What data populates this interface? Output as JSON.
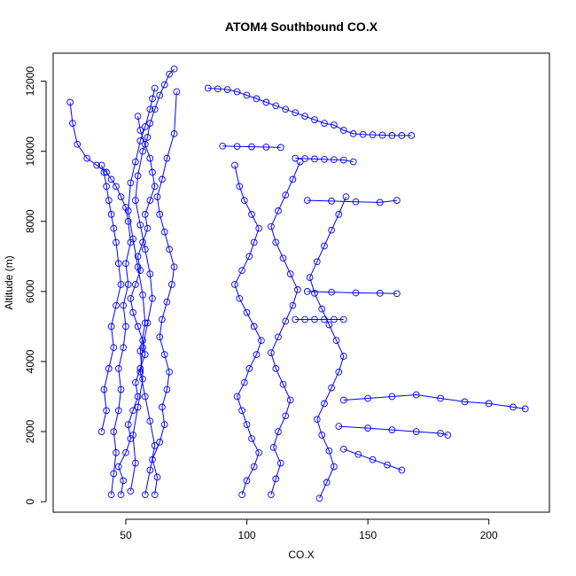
{
  "chart_data": {
    "type": "scatter",
    "title": "ATOM4 Southbound CO.X",
    "xlabel": "CO.X",
    "ylabel": "Altitude (m)",
    "xlim": [
      20,
      225
    ],
    "ylim": [
      -300,
      12800
    ],
    "xticks": [
      50,
      100,
      150,
      200
    ],
    "yticks": [
      0,
      2000,
      4000,
      6000,
      8000,
      10000,
      12000
    ],
    "grid": false,
    "legend": "none",
    "color": "#0000ff",
    "marker": "open-circle",
    "connected": true,
    "series": [
      {
        "x": [
          48,
          49,
          47,
          50,
          52,
          51,
          53,
          55,
          54,
          56,
          58,
          57,
          55,
          53,
          52,
          54,
          56,
          55,
          57,
          59,
          58,
          60,
          62,
          61,
          60,
          58,
          56,
          55
        ],
        "y": [
          200,
          600,
          1000,
          1400,
          1800,
          2200,
          2600,
          3000,
          3400,
          3800,
          4200,
          4600,
          5000,
          5400,
          5800,
          6200,
          6600,
          7000,
          7400,
          7800,
          8200,
          8600,
          9000,
          9400,
          9800,
          10200,
          10600,
          11000
        ]
      },
      {
        "x": [
          44,
          45,
          46,
          45,
          47,
          48,
          47,
          49,
          50,
          49,
          51,
          50,
          52,
          51,
          50,
          48,
          46,
          44,
          42,
          38,
          34,
          30,
          28,
          27
        ],
        "y": [
          200,
          800,
          1400,
          2000,
          2600,
          3200,
          3800,
          4400,
          5000,
          5600,
          6200,
          6800,
          7400,
          8000,
          8400,
          8700,
          9000,
          9200,
          9400,
          9600,
          9800,
          10200,
          10800,
          11400
        ]
      },
      {
        "x": [
          62,
          63,
          61,
          64,
          66,
          65,
          67,
          68,
          66,
          64,
          65,
          67,
          69,
          70,
          68,
          66,
          64,
          63,
          65,
          67,
          70,
          71
        ],
        "y": [
          200,
          700,
          1200,
          1700,
          2200,
          2700,
          3200,
          3700,
          4200,
          4700,
          5200,
          5700,
          6200,
          6700,
          7200,
          7700,
          8200,
          8700,
          9200,
          9800,
          10500,
          11700
        ]
      },
      {
        "x": [
          40,
          42,
          41,
          43,
          45,
          44,
          46,
          48,
          47,
          46,
          45,
          44,
          43,
          42,
          41,
          40
        ],
        "y": [
          2000,
          2600,
          3200,
          3800,
          4400,
          5000,
          5600,
          6200,
          6800,
          7400,
          7800,
          8200,
          8600,
          9000,
          9400,
          9600
        ]
      },
      {
        "x": [
          58,
          60,
          62,
          60,
          58,
          56,
          57,
          59,
          61,
          60,
          58,
          56,
          54,
          55,
          57,
          59,
          60,
          62,
          64,
          66,
          68,
          70
        ],
        "y": [
          200,
          900,
          1600,
          2300,
          3000,
          3700,
          4400,
          5100,
          5800,
          6500,
          7200,
          7900,
          8600,
          9300,
          10000,
          10400,
          10800,
          11200,
          11600,
          11900,
          12200,
          12350
        ]
      },
      {
        "x": [
          52,
          54,
          53,
          55,
          57,
          56,
          58,
          57,
          55,
          53,
          51,
          52,
          54,
          56,
          58,
          60,
          61,
          62
        ],
        "y": [
          300,
          1100,
          1900,
          2700,
          3500,
          4300,
          5100,
          5900,
          6700,
          7500,
          8300,
          9100,
          9700,
          10300,
          10700,
          11200,
          11500,
          11800
        ]
      },
      {
        "x": [
          84,
          88,
          92,
          96,
          100,
          104,
          108,
          112,
          116,
          120,
          124,
          128,
          132,
          136,
          140,
          144,
          148,
          152,
          156,
          160,
          164,
          168
        ],
        "y": [
          11800,
          11780,
          11760,
          11700,
          11600,
          11500,
          11400,
          11300,
          11200,
          11100,
          11000,
          10900,
          10800,
          10750,
          10600,
          10500,
          10480,
          10470,
          10460,
          10450,
          10450,
          10450
        ]
      },
      {
        "x": [
          98,
          100,
          103,
          105,
          102,
          100,
          98,
          96,
          99,
          101,
          104,
          106,
          103,
          100,
          97,
          95,
          98,
          101,
          103,
          105,
          102,
          99,
          97,
          95
        ],
        "y": [
          200,
          600,
          1000,
          1400,
          1800,
          2200,
          2600,
          3000,
          3400,
          3800,
          4200,
          4600,
          5000,
          5400,
          5800,
          6200,
          6600,
          7000,
          7400,
          7800,
          8200,
          8600,
          9000,
          9600
        ]
      },
      {
        "x": [
          110,
          112,
          114,
          111,
          113,
          116,
          118,
          115,
          112,
          110,
          113,
          116,
          119,
          121,
          118,
          115,
          112,
          110,
          113,
          116,
          119,
          122
        ],
        "y": [
          200,
          650,
          1100,
          1550,
          2000,
          2450,
          2900,
          3350,
          3800,
          4250,
          4700,
          5150,
          5600,
          6050,
          6500,
          6950,
          7400,
          7850,
          8300,
          8750,
          9200,
          9700
        ]
      },
      {
        "x": [
          130,
          133,
          136,
          134,
          131,
          129,
          132,
          135,
          138,
          140,
          137,
          134,
          131,
          128,
          126,
          129,
          132,
          135,
          138,
          141
        ],
        "y": [
          100,
          550,
          1000,
          1450,
          1900,
          2350,
          2800,
          3250,
          3700,
          4150,
          4600,
          5050,
          5500,
          5950,
          6400,
          6850,
          7300,
          7750,
          8200,
          8700
        ]
      },
      {
        "x": [
          140,
          150,
          160,
          170,
          180,
          190,
          200,
          210,
          215
        ],
        "y": [
          2900,
          2950,
          3000,
          3050,
          2950,
          2850,
          2800,
          2700,
          2650
        ]
      },
      {
        "x": [
          125,
          135,
          145,
          155,
          162
        ],
        "y": [
          8600,
          8580,
          8560,
          8540,
          8600
        ]
      },
      {
        "x": [
          125,
          135,
          145,
          155,
          162
        ],
        "y": [
          6000,
          5980,
          5960,
          5950,
          5940
        ]
      },
      {
        "x": [
          138,
          150,
          160,
          170,
          180,
          183
        ],
        "y": [
          2150,
          2100,
          2050,
          2000,
          1950,
          1900
        ]
      },
      {
        "x": [
          140,
          146,
          152,
          158,
          164
        ],
        "y": [
          1500,
          1350,
          1200,
          1050,
          900
        ]
      },
      {
        "x": [
          120,
          124,
          128,
          132,
          136,
          140,
          144
        ],
        "y": [
          9800,
          9790,
          9780,
          9770,
          9760,
          9750,
          9700
        ]
      },
      {
        "x": [
          90,
          96,
          102,
          108,
          114
        ],
        "y": [
          10150,
          10140,
          10130,
          10120,
          10110
        ]
      },
      {
        "x": [
          120,
          124,
          128,
          132,
          136,
          140
        ],
        "y": [
          5200,
          5200,
          5200,
          5200,
          5200,
          5200
        ]
      }
    ]
  }
}
